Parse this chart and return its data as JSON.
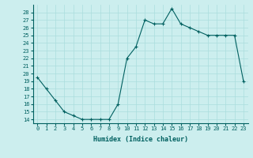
{
  "x": [
    0,
    1,
    2,
    3,
    4,
    5,
    6,
    7,
    8,
    9,
    10,
    11,
    12,
    13,
    14,
    15,
    16,
    17,
    18,
    19,
    20,
    21,
    22,
    23
  ],
  "y": [
    19.5,
    18.0,
    16.5,
    15.0,
    14.5,
    14.0,
    14.0,
    14.0,
    14.0,
    16.0,
    22.0,
    23.5,
    27.0,
    26.5,
    26.5,
    28.5,
    26.5,
    26.0,
    25.5,
    25.0,
    25.0,
    25.0,
    25.0,
    19.0
  ],
  "line_color": "#006060",
  "marker": "+",
  "marker_size": 3,
  "xlabel": "Humidex (Indice chaleur)",
  "ylabel_ticks": [
    14,
    15,
    16,
    17,
    18,
    19,
    20,
    21,
    22,
    23,
    24,
    25,
    26,
    27,
    28
  ],
  "ylim": [
    13.5,
    29.0
  ],
  "xlim": [
    -0.5,
    23.5
  ],
  "bg_color": "#cceeee",
  "grid_color": "#aadddd",
  "tick_fontsize": 5.0,
  "label_fontsize": 6.0,
  "xtick_labels": [
    "0",
    "1",
    "2",
    "3",
    "4",
    "5",
    "6",
    "7",
    "8",
    "9",
    "10",
    "11",
    "12",
    "13",
    "14",
    "15",
    "16",
    "17",
    "18",
    "19",
    "20",
    "21",
    "22",
    "23"
  ]
}
